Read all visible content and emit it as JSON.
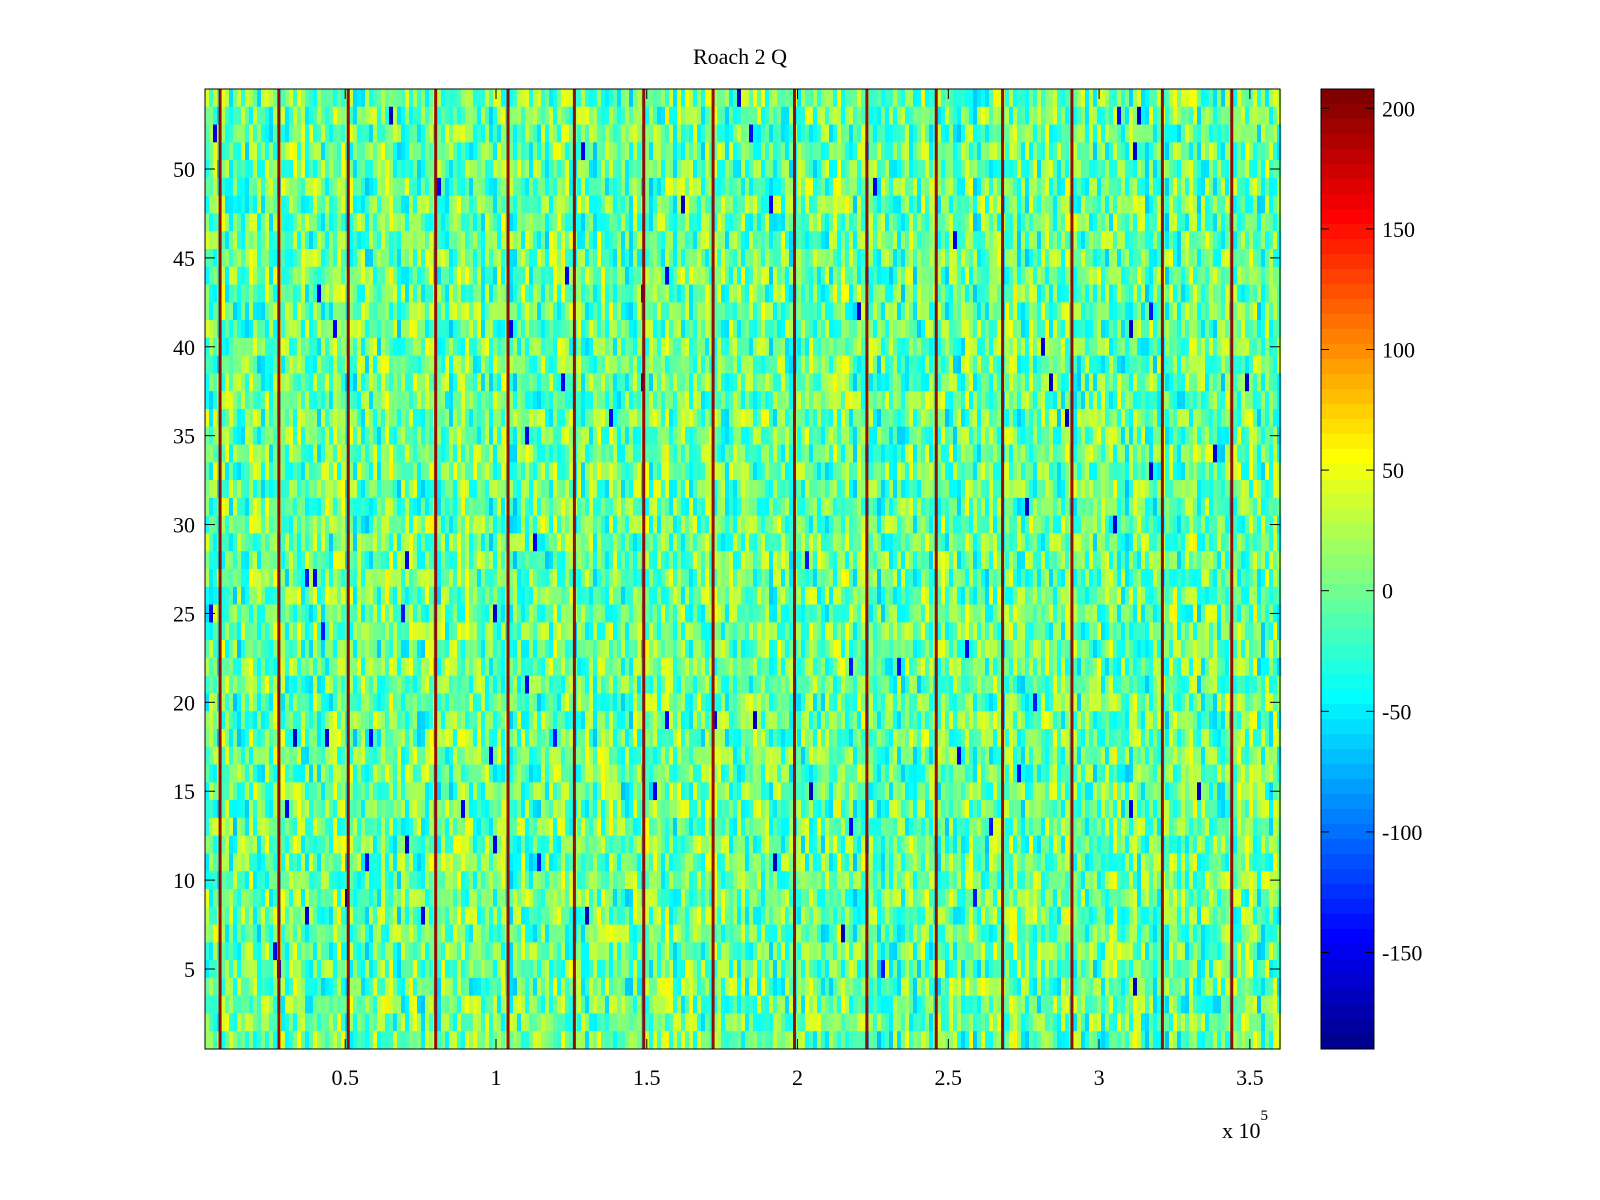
{
  "chart_data": {
    "type": "heatmap",
    "title": "Roach 2 Q",
    "xlabel": "",
    "ylabel": "",
    "x_multiplier_label": "x 10",
    "x_multiplier_exponent": "5",
    "xlim": [
      0.035,
      3.6
    ],
    "ylim": [
      0.5,
      54.5
    ],
    "rows": 54,
    "x_ticks": [
      0.5,
      1,
      1.5,
      2,
      2.5,
      3,
      3.5
    ],
    "x_tick_labels": [
      "0.5",
      "1",
      "1.5",
      "2",
      "2.5",
      "3",
      "3.5"
    ],
    "y_ticks": [
      5,
      10,
      15,
      20,
      25,
      30,
      35,
      40,
      45,
      50
    ],
    "y_tick_labels": [
      "5",
      "10",
      "15",
      "20",
      "25",
      "30",
      "35",
      "40",
      "45",
      "50"
    ],
    "colorbar": {
      "colormap": "jet",
      "clim": [
        -190,
        208
      ],
      "ticks": [
        -150,
        -100,
        -50,
        0,
        50,
        100,
        150,
        200
      ],
      "tick_labels": [
        "-150",
        "-100",
        "-50",
        "0",
        "50",
        "100",
        "150",
        "200"
      ]
    },
    "vertical_bands": [
      {
        "x": 0.085,
        "value": 200
      },
      {
        "x": 0.28,
        "value": 200
      },
      {
        "x": 0.51,
        "value": 200
      },
      {
        "x": 0.8,
        "value": 200
      },
      {
        "x": 1.04,
        "value": 200
      },
      {
        "x": 1.26,
        "value": 200
      },
      {
        "x": 1.49,
        "value": 200
      },
      {
        "x": 1.72,
        "value": 200
      },
      {
        "x": 1.99,
        "value": 200
      },
      {
        "x": 2.23,
        "value": 200
      },
      {
        "x": 2.46,
        "value": 200
      },
      {
        "x": 2.68,
        "value": 200
      },
      {
        "x": 2.91,
        "value": 200
      },
      {
        "x": 3.21,
        "value": 200
      },
      {
        "x": 3.44,
        "value": 200
      }
    ],
    "background_value_range": [
      -60,
      60
    ],
    "background_typical_value": 0
  }
}
